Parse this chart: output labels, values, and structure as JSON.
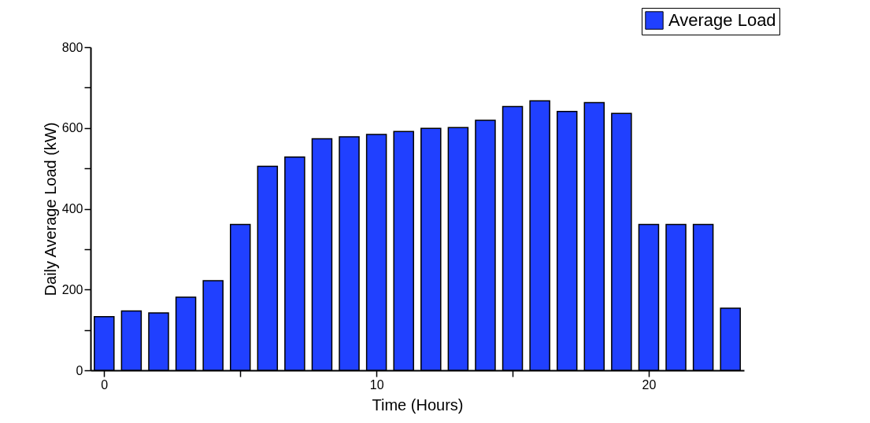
{
  "chart_data": {
    "type": "bar",
    "xlabel": "Time (Hours)",
    "ylabel": "Daily Average Load (kW)",
    "x": [
      0,
      1,
      2,
      3,
      4,
      5,
      6,
      7,
      8,
      9,
      10,
      11,
      12,
      13,
      14,
      15,
      16,
      17,
      18,
      19,
      20,
      21,
      22,
      23
    ],
    "series": [
      {
        "name": "Average Load",
        "color": "#2040ff",
        "values": [
          133,
          147,
          142,
          181,
          222,
          361,
          505,
          528,
          573,
          578,
          584,
          591,
          599,
          601,
          619,
          653,
          667,
          641,
          663,
          636,
          361,
          361,
          361,
          154
        ]
      }
    ],
    "xlim": [
      -0.5,
      23.5
    ],
    "xticks": [
      0,
      {
        "value": 5,
        "label": null
      },
      10,
      {
        "value": 15,
        "label": null
      },
      20
    ],
    "ylim": [
      0,
      800
    ],
    "yticks": [
      0,
      {
        "value": 100,
        "label": null
      },
      200,
      {
        "value": 300,
        "label": null
      },
      400,
      {
        "value": 500,
        "label": null
      },
      600,
      {
        "value": 700,
        "label": null
      },
      800
    ],
    "grid": false,
    "legend": "top right"
  }
}
